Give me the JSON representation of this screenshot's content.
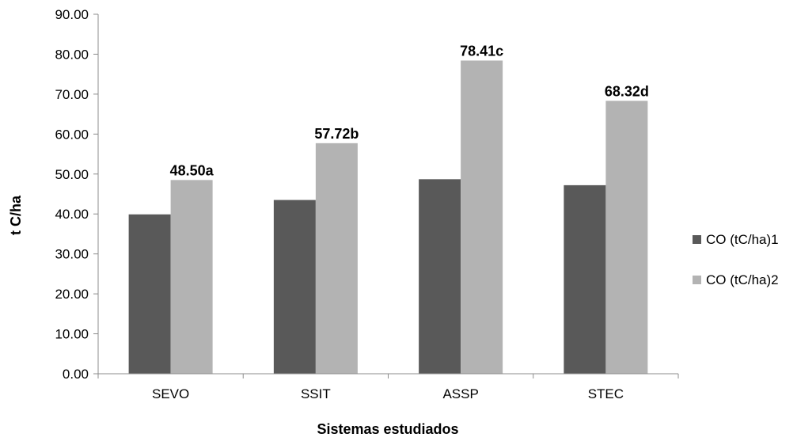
{
  "chart_data": {
    "type": "bar",
    "xlabel": "Sistemas estudiados",
    "ylabel": "t C/ha",
    "ylim": [
      0,
      90
    ],
    "yticks": [
      "0.00",
      "10.00",
      "20.00",
      "30.00",
      "40.00",
      "50.00",
      "60.00",
      "70.00",
      "80.00",
      "90.00"
    ],
    "grid": false,
    "legend_position": "right",
    "categories": [
      "SEVO",
      "SSIT",
      "ASSP",
      "STEC"
    ],
    "series": [
      {
        "name": "CO (tC/ha)1",
        "color": "#595959",
        "values": [
          39.9,
          43.5,
          48.7,
          47.2
        ],
        "labels": [
          "",
          "",
          "",
          ""
        ]
      },
      {
        "name": "CO (tC/ha)2",
        "color": "#b3b3b3",
        "values": [
          48.5,
          57.72,
          78.41,
          68.32
        ],
        "labels": [
          "48.50a",
          "57.72b",
          "78.41c",
          "68.32d"
        ]
      }
    ]
  }
}
